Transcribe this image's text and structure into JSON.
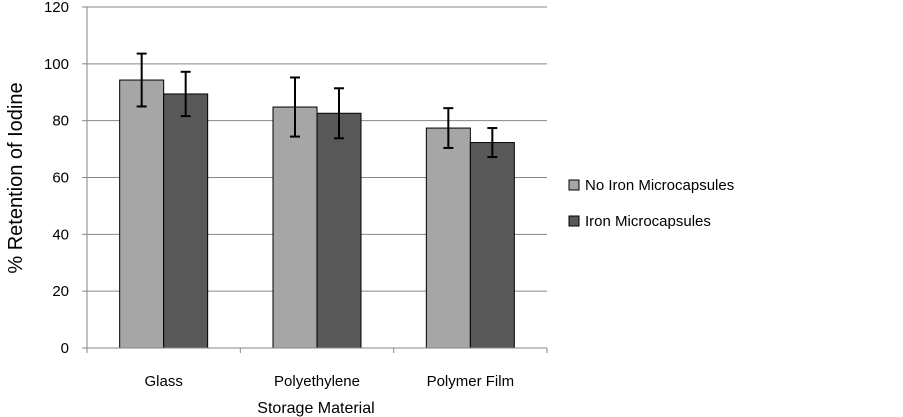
{
  "chart_data": {
    "type": "bar",
    "title": "",
    "xlabel": "Storage Material",
    "ylabel": "% Retention of Iodine",
    "categories": [
      "Glass",
      "Polyethylene",
      "Polymer Film"
    ],
    "series": [
      {
        "name": "No Iron Microcapsules",
        "color": "#a6a6a6",
        "values": [
          94.3,
          84.8,
          77.4
        ],
        "error": [
          9.3,
          10.4,
          7.0
        ]
      },
      {
        "name": "Iron Microcapsules",
        "color": "#595959",
        "values": [
          89.4,
          82.6,
          72.3
        ],
        "error": [
          7.8,
          8.8,
          5.1
        ]
      }
    ],
    "ylim": [
      0,
      120
    ],
    "yticks": [
      0,
      20,
      40,
      60,
      80,
      100,
      120
    ],
    "grid": true,
    "legend_position": "right"
  }
}
